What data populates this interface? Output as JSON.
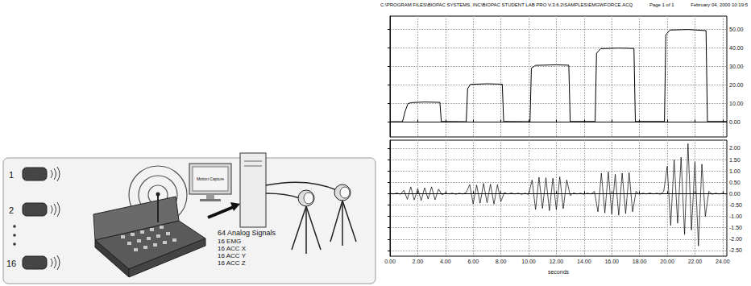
{
  "diagram": {
    "sensors": [
      {
        "label": "1"
      },
      {
        "label": "2"
      },
      {
        "label": "16"
      }
    ],
    "screen_label": "Motion Capture",
    "receiver": {
      "title": "64 Analog Signals",
      "lines": [
        "16 EMG",
        "16 ACC X",
        "16 ACC Y",
        "16 ACC Z"
      ]
    }
  },
  "header": {
    "path": "C:\\PROGRAM FILES\\BIOPAC SYSTEMS, INC\\BIOPAC STUDENT LAB PRO V.3.6.2\\SAMPLES\\EMGWFORCE.ACQ",
    "page": "Page 1 of 1",
    "date": "February 04, 2000 10:19:5"
  },
  "chart_data": [
    {
      "type": "line",
      "color": "#000000",
      "grid": true,
      "tick_labels": "y",
      "x": [
        0,
        0.9,
        1.1,
        1.3,
        1.6,
        2.5,
        3.6,
        3.7,
        5.5,
        5.6,
        5.8,
        7,
        8.1,
        8.2,
        10.1,
        10.2,
        10.5,
        12,
        12.9,
        13,
        14.8,
        14.9,
        15.2,
        16.5,
        17.6,
        17.7,
        19.8,
        19.9,
        20.2,
        21.5,
        22.8,
        22.9,
        24.3
      ],
      "values": [
        0.2,
        0.2,
        6,
        10,
        10.5,
        10.8,
        10.6,
        0.3,
        0.2,
        18,
        20.3,
        20.6,
        20.4,
        0.3,
        0.2,
        29,
        30.5,
        30.8,
        30.6,
        0.3,
        0.3,
        37,
        39.5,
        39.8,
        39.6,
        0.3,
        0.3,
        47,
        49.5,
        49.8,
        49.2,
        0.3,
        0.3
      ],
      "xlim": [
        0,
        24.3
      ],
      "xticks": [
        0,
        2,
        4,
        6,
        8,
        10,
        12,
        14,
        16,
        18,
        20,
        22,
        24
      ],
      "ylim": [
        -8,
        57
      ],
      "yticks": [
        {
          "value": 0,
          "label": "0.00"
        },
        {
          "value": 10,
          "label": "10.00"
        },
        {
          "value": 20,
          "label": "20.00"
        },
        {
          "value": 30,
          "label": "30.00"
        },
        {
          "value": 40,
          "label": "40.00"
        },
        {
          "value": 50,
          "label": "50.00"
        }
      ]
    },
    {
      "type": "line",
      "color": "#000000",
      "grid": true,
      "xlabel": "seconds",
      "x": [
        0,
        0.25,
        0.5,
        0.75,
        1,
        1.25,
        1.5,
        1.75,
        2,
        2.25,
        2.5,
        2.75,
        3,
        3.25,
        3.5,
        3.75,
        4,
        4.25,
        4.5,
        4.75,
        5,
        5.25,
        5.5,
        5.75,
        6,
        6.25,
        6.5,
        6.75,
        7,
        7.25,
        7.5,
        7.75,
        8,
        8.25,
        8.5,
        8.75,
        9,
        9.25,
        9.5,
        9.75,
        10,
        10.25,
        10.5,
        10.75,
        11,
        11.25,
        11.5,
        11.75,
        12,
        12.25,
        12.5,
        12.75,
        13,
        13.25,
        13.5,
        13.75,
        14,
        14.25,
        14.5,
        14.75,
        15,
        15.25,
        15.5,
        15.75,
        16,
        16.25,
        16.5,
        16.75,
        17,
        17.25,
        17.5,
        17.75,
        18,
        18.25,
        18.5,
        18.75,
        19,
        19.25,
        19.5,
        19.75,
        20,
        20.25,
        20.5,
        20.75,
        21,
        21.25,
        21.5,
        21.75,
        22,
        22.25,
        22.5,
        22.75,
        23,
        23.25,
        23.5,
        23.75,
        24,
        24.25
      ],
      "values": [
        0.02,
        -0.02,
        0.03,
        -0.03,
        0.15,
        -0.25,
        0.3,
        -0.28,
        0.22,
        -0.3,
        0.26,
        -0.24,
        0.3,
        -0.27,
        0.2,
        -0.05,
        0.03,
        -0.02,
        0.02,
        -0.03,
        0.02,
        -0.02,
        0.05,
        0.4,
        -0.45,
        0.38,
        -0.42,
        0.45,
        -0.4,
        0.42,
        -0.46,
        0.4,
        -0.35,
        0.05,
        -0.02,
        0.03,
        -0.02,
        0.02,
        -0.03,
        0.02,
        -0.04,
        0.6,
        -0.7,
        0.72,
        -0.65,
        0.7,
        -0.75,
        0.68,
        -0.7,
        0.74,
        -0.66,
        0.6,
        -0.08,
        0.03,
        -0.02,
        0.02,
        -0.03,
        0.02,
        -0.02,
        0.1,
        -0.8,
        0.9,
        -0.85,
        0.95,
        -0.9,
        0.85,
        -0.95,
        0.9,
        -0.88,
        0.92,
        -0.8,
        0.1,
        -0.03,
        0.02,
        -0.02,
        0.03,
        -0.02,
        0.02,
        -0.03,
        0.1,
        1.2,
        -1.4,
        1.5,
        -1.3,
        1.6,
        -1.8,
        2.2,
        -1.6,
        1.4,
        -2.3,
        1.3,
        -1.0,
        0.1,
        -0.03,
        0.02,
        -0.02,
        0.02,
        -0.02
      ],
      "xlim": [
        0,
        24.3
      ],
      "xticks": [
        {
          "value": 0,
          "label": "0.00"
        },
        {
          "value": 2,
          "label": "2.00"
        },
        {
          "value": 4,
          "label": "4.00"
        },
        {
          "value": 6,
          "label": "6.00"
        },
        {
          "value": 8,
          "label": "8.00"
        },
        {
          "value": 10,
          "label": "10.00"
        },
        {
          "value": 12,
          "label": "12.00"
        },
        {
          "value": 14,
          "label": "14.00"
        },
        {
          "value": 16,
          "label": "16.00"
        },
        {
          "value": 18,
          "label": "18.00"
        },
        {
          "value": 20,
          "label": "20.00"
        },
        {
          "value": 22,
          "label": "22.00"
        },
        {
          "value": 24,
          "label": "24.00"
        }
      ],
      "ylim": [
        -2.75,
        2.35
      ],
      "yticks": [
        {
          "value": -2.5,
          "label": "-2.50"
        },
        {
          "value": -2,
          "label": "-2.00"
        },
        {
          "value": -1.5,
          "label": "-1.50"
        },
        {
          "value": -1,
          "label": "-1.00"
        },
        {
          "value": -0.5,
          "label": "-0.50"
        },
        {
          "value": 0,
          "label": "0.00"
        },
        {
          "value": 0.5,
          "label": "0.50"
        },
        {
          "value": 1,
          "label": "1.00"
        },
        {
          "value": 1.5,
          "label": "1.50"
        },
        {
          "value": 2,
          "label": "2.00"
        }
      ]
    }
  ]
}
